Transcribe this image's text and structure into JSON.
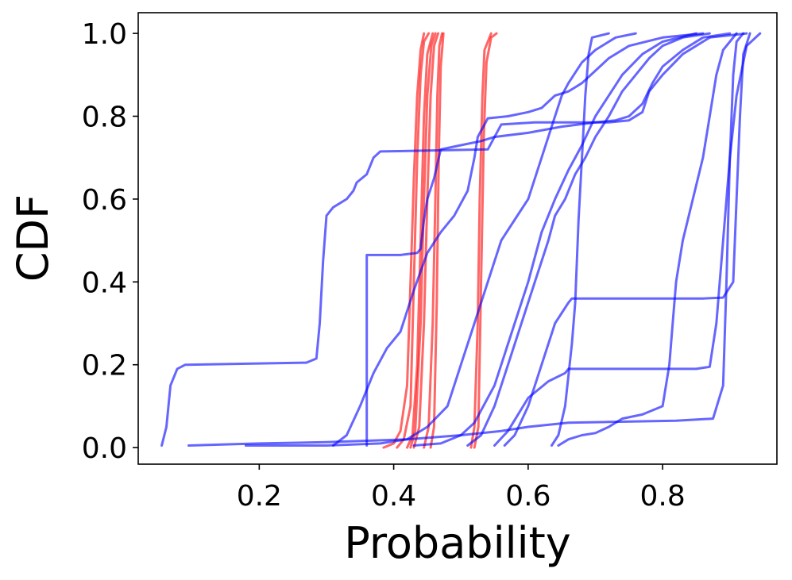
{
  "chart_data": {
    "type": "line",
    "title": "",
    "xlabel": "Probability",
    "ylabel": "CDF",
    "xlim": [
      0.02,
      0.97
    ],
    "ylim": [
      -0.04,
      1.05
    ],
    "xticks": [
      0.2,
      0.4,
      0.6,
      0.8
    ],
    "xtick_labels": [
      "0.2",
      "0.4",
      "0.6",
      "0.8"
    ],
    "yticks": [
      0.0,
      0.2,
      0.4,
      0.6,
      0.8,
      1.0
    ],
    "ytick_labels": [
      "0.0",
      "0.2",
      "0.4",
      "0.6",
      "0.8",
      "1.0"
    ],
    "grid": false,
    "legend": "none",
    "colors": {
      "blue": "#0000ff",
      "red": "#ff0000"
    },
    "series_opacity": 0.6,
    "series": [
      {
        "color": "red",
        "points": [
          [
            0.385,
            0.0
          ],
          [
            0.4,
            0.01
          ],
          [
            0.41,
            0.04
          ],
          [
            0.42,
            0.15
          ],
          [
            0.425,
            0.4
          ],
          [
            0.43,
            0.65
          ],
          [
            0.435,
            0.85
          ],
          [
            0.44,
            0.96
          ],
          [
            0.445,
            1.0
          ]
        ]
      },
      {
        "color": "red",
        "points": [
          [
            0.405,
            0.0
          ],
          [
            0.415,
            0.02
          ],
          [
            0.425,
            0.1
          ],
          [
            0.43,
            0.4
          ],
          [
            0.435,
            0.7
          ],
          [
            0.44,
            0.9
          ],
          [
            0.445,
            0.98
          ],
          [
            0.452,
            1.0
          ]
        ]
      },
      {
        "color": "red",
        "points": [
          [
            0.42,
            0.0
          ],
          [
            0.428,
            0.03
          ],
          [
            0.435,
            0.2
          ],
          [
            0.44,
            0.5
          ],
          [
            0.445,
            0.8
          ],
          [
            0.45,
            0.95
          ],
          [
            0.458,
            1.0
          ]
        ]
      },
      {
        "color": "red",
        "points": [
          [
            0.425,
            0.0
          ],
          [
            0.432,
            0.04
          ],
          [
            0.44,
            0.3
          ],
          [
            0.445,
            0.6
          ],
          [
            0.45,
            0.85
          ],
          [
            0.456,
            0.97
          ],
          [
            0.462,
            1.0
          ]
        ]
      },
      {
        "color": "red",
        "points": [
          [
            0.43,
            0.0
          ],
          [
            0.438,
            0.05
          ],
          [
            0.445,
            0.3
          ],
          [
            0.45,
            0.6
          ],
          [
            0.455,
            0.85
          ],
          [
            0.46,
            0.97
          ],
          [
            0.466,
            1.0
          ]
        ]
      },
      {
        "color": "red",
        "points": [
          [
            0.445,
            0.0
          ],
          [
            0.452,
            0.05
          ],
          [
            0.458,
            0.3
          ],
          [
            0.462,
            0.6
          ],
          [
            0.465,
            0.85
          ],
          [
            0.468,
            0.97
          ],
          [
            0.472,
            1.0
          ]
        ]
      },
      {
        "color": "red",
        "points": [
          [
            0.455,
            0.0
          ],
          [
            0.46,
            0.05
          ],
          [
            0.464,
            0.35
          ],
          [
            0.467,
            0.7
          ],
          [
            0.47,
            0.92
          ],
          [
            0.474,
            1.0
          ]
        ]
      },
      {
        "color": "red",
        "points": [
          [
            0.515,
            0.0
          ],
          [
            0.52,
            0.05
          ],
          [
            0.525,
            0.3
          ],
          [
            0.528,
            0.6
          ],
          [
            0.532,
            0.85
          ],
          [
            0.535,
            0.96
          ],
          [
            0.545,
            1.0
          ]
        ]
      },
      {
        "color": "red",
        "points": [
          [
            0.52,
            0.0
          ],
          [
            0.526,
            0.05
          ],
          [
            0.53,
            0.4
          ],
          [
            0.534,
            0.75
          ],
          [
            0.538,
            0.93
          ],
          [
            0.545,
            0.99
          ],
          [
            0.553,
            1.0
          ]
        ]
      },
      {
        "color": "blue",
        "points": [
          [
            0.055,
            0.005
          ],
          [
            0.062,
            0.05
          ],
          [
            0.068,
            0.15
          ],
          [
            0.078,
            0.19
          ],
          [
            0.09,
            0.2
          ],
          [
            0.27,
            0.205
          ],
          [
            0.285,
            0.215
          ],
          [
            0.29,
            0.3
          ],
          [
            0.295,
            0.45
          ],
          [
            0.3,
            0.56
          ],
          [
            0.31,
            0.58
          ],
          [
            0.33,
            0.6
          ],
          [
            0.34,
            0.62
          ],
          [
            0.345,
            0.64
          ],
          [
            0.36,
            0.66
          ],
          [
            0.37,
            0.7
          ],
          [
            0.38,
            0.715
          ],
          [
            0.54,
            0.72
          ],
          [
            0.56,
            0.78
          ],
          [
            0.61,
            0.785
          ],
          [
            0.65,
            0.785
          ],
          [
            0.72,
            0.785
          ],
          [
            0.75,
            0.79
          ],
          [
            0.77,
            0.81
          ],
          [
            0.78,
            0.86
          ],
          [
            0.8,
            0.9
          ],
          [
            0.83,
            0.95
          ],
          [
            0.87,
            0.99
          ],
          [
            0.925,
            1.0
          ]
        ]
      },
      {
        "color": "blue",
        "points": [
          [
            0.095,
            0.005
          ],
          [
            0.2,
            0.01
          ],
          [
            0.3,
            0.013
          ],
          [
            0.42,
            0.02
          ],
          [
            0.5,
            0.03
          ],
          [
            0.56,
            0.04
          ],
          [
            0.6,
            0.05
          ],
          [
            0.66,
            0.06
          ],
          [
            0.72,
            0.062
          ],
          [
            0.82,
            0.065
          ],
          [
            0.875,
            0.07
          ],
          [
            0.89,
            0.15
          ],
          [
            0.895,
            0.4
          ],
          [
            0.9,
            0.7
          ],
          [
            0.905,
            0.9
          ],
          [
            0.91,
            0.98
          ],
          [
            0.92,
            1.0
          ]
        ]
      },
      {
        "color": "blue",
        "points": [
          [
            0.36,
            0.005
          ],
          [
            0.36,
            0.465
          ],
          [
            0.41,
            0.465
          ],
          [
            0.435,
            0.47
          ],
          [
            0.44,
            0.48
          ],
          [
            0.445,
            0.55
          ],
          [
            0.45,
            0.6
          ],
          [
            0.46,
            0.65
          ],
          [
            0.47,
            0.72
          ],
          [
            0.5,
            0.73
          ],
          [
            0.53,
            0.74
          ],
          [
            0.55,
            0.75
          ],
          [
            0.6,
            0.76
          ],
          [
            0.65,
            0.775
          ],
          [
            0.7,
            0.785
          ],
          [
            0.73,
            0.79
          ],
          [
            0.75,
            0.8
          ],
          [
            0.77,
            0.83
          ],
          [
            0.785,
            0.88
          ],
          [
            0.8,
            0.92
          ],
          [
            0.83,
            0.96
          ],
          [
            0.86,
            0.99
          ],
          [
            0.9,
            1.0
          ]
        ]
      },
      {
        "color": "blue",
        "points": [
          [
            0.31,
            0.005
          ],
          [
            0.33,
            0.03
          ],
          [
            0.35,
            0.1
          ],
          [
            0.37,
            0.18
          ],
          [
            0.39,
            0.24
          ],
          [
            0.41,
            0.28
          ],
          [
            0.43,
            0.38
          ],
          [
            0.45,
            0.47
          ],
          [
            0.47,
            0.52
          ],
          [
            0.49,
            0.56
          ],
          [
            0.51,
            0.62
          ],
          [
            0.52,
            0.7
          ],
          [
            0.525,
            0.75
          ],
          [
            0.54,
            0.795
          ],
          [
            0.57,
            0.8
          ],
          [
            0.6,
            0.81
          ],
          [
            0.62,
            0.82
          ],
          [
            0.64,
            0.85
          ],
          [
            0.66,
            0.86
          ],
          [
            0.67,
            0.87
          ],
          [
            0.68,
            0.88
          ],
          [
            0.7,
            0.91
          ],
          [
            0.72,
            0.94
          ],
          [
            0.75,
            0.97
          ],
          [
            0.8,
            0.99
          ],
          [
            0.86,
            1.0
          ]
        ]
      },
      {
        "color": "blue",
        "points": [
          [
            0.18,
            0.005
          ],
          [
            0.3,
            0.005
          ],
          [
            0.38,
            0.01
          ],
          [
            0.42,
            0.02
          ],
          [
            0.45,
            0.05
          ],
          [
            0.48,
            0.1
          ],
          [
            0.5,
            0.2
          ],
          [
            0.52,
            0.3
          ],
          [
            0.54,
            0.4
          ],
          [
            0.56,
            0.5
          ],
          [
            0.58,
            0.55
          ],
          [
            0.6,
            0.6
          ],
          [
            0.62,
            0.7
          ],
          [
            0.64,
            0.8
          ],
          [
            0.65,
            0.85
          ],
          [
            0.66,
            0.88
          ],
          [
            0.68,
            0.93
          ],
          [
            0.7,
            0.96
          ],
          [
            0.73,
            0.99
          ],
          [
            0.76,
            1.0
          ]
        ]
      },
      {
        "color": "blue",
        "points": [
          [
            0.43,
            0.005
          ],
          [
            0.47,
            0.01
          ],
          [
            0.5,
            0.03
          ],
          [
            0.52,
            0.06
          ],
          [
            0.55,
            0.15
          ],
          [
            0.58,
            0.3
          ],
          [
            0.6,
            0.4
          ],
          [
            0.62,
            0.52
          ],
          [
            0.64,
            0.6
          ],
          [
            0.66,
            0.67
          ],
          [
            0.68,
            0.73
          ],
          [
            0.7,
            0.8
          ],
          [
            0.72,
            0.85
          ],
          [
            0.74,
            0.9
          ],
          [
            0.77,
            0.95
          ],
          [
            0.8,
            0.98
          ],
          [
            0.85,
            1.0
          ]
        ]
      },
      {
        "color": "blue",
        "points": [
          [
            0.51,
            0.005
          ],
          [
            0.53,
            0.03
          ],
          [
            0.55,
            0.1
          ],
          [
            0.57,
            0.2
          ],
          [
            0.59,
            0.3
          ],
          [
            0.61,
            0.4
          ],
          [
            0.63,
            0.5
          ],
          [
            0.64,
            0.56
          ],
          [
            0.655,
            0.6
          ],
          [
            0.67,
            0.66
          ],
          [
            0.685,
            0.7
          ],
          [
            0.7,
            0.75
          ],
          [
            0.72,
            0.8
          ],
          [
            0.74,
            0.86
          ],
          [
            0.76,
            0.9
          ],
          [
            0.78,
            0.94
          ],
          [
            0.8,
            0.97
          ],
          [
            0.83,
            0.99
          ],
          [
            0.87,
            1.0
          ]
        ]
      },
      {
        "color": "blue",
        "points": [
          [
            0.565,
            0.005
          ],
          [
            0.58,
            0.03
          ],
          [
            0.6,
            0.1
          ],
          [
            0.62,
            0.2
          ],
          [
            0.64,
            0.3
          ],
          [
            0.66,
            0.35
          ],
          [
            0.665,
            0.36
          ],
          [
            0.7,
            0.36
          ],
          [
            0.75,
            0.36
          ],
          [
            0.8,
            0.36
          ],
          [
            0.86,
            0.36
          ],
          [
            0.89,
            0.362
          ],
          [
            0.905,
            0.4
          ],
          [
            0.91,
            0.6
          ],
          [
            0.915,
            0.8
          ],
          [
            0.92,
            0.95
          ],
          [
            0.93,
            1.0
          ]
        ]
      },
      {
        "color": "blue",
        "points": [
          [
            0.55,
            0.005
          ],
          [
            0.57,
            0.04
          ],
          [
            0.6,
            0.12
          ],
          [
            0.63,
            0.16
          ],
          [
            0.655,
            0.18
          ],
          [
            0.66,
            0.19
          ],
          [
            0.7,
            0.19
          ],
          [
            0.75,
            0.19
          ],
          [
            0.8,
            0.19
          ],
          [
            0.85,
            0.19
          ],
          [
            0.87,
            0.195
          ],
          [
            0.88,
            0.3
          ],
          [
            0.89,
            0.5
          ],
          [
            0.9,
            0.7
          ],
          [
            0.91,
            0.85
          ],
          [
            0.925,
            0.97
          ],
          [
            0.945,
            1.0
          ]
        ]
      },
      {
        "color": "blue",
        "points": [
          [
            0.635,
            0.005
          ],
          [
            0.645,
            0.03
          ],
          [
            0.655,
            0.1
          ],
          [
            0.665,
            0.25
          ],
          [
            0.67,
            0.35
          ],
          [
            0.675,
            0.55
          ],
          [
            0.68,
            0.7
          ],
          [
            0.685,
            0.85
          ],
          [
            0.69,
            0.95
          ],
          [
            0.695,
            0.99
          ],
          [
            0.72,
            1.0
          ]
        ]
      },
      {
        "color": "blue",
        "points": [
          [
            0.645,
            0.005
          ],
          [
            0.66,
            0.02
          ],
          [
            0.68,
            0.03
          ],
          [
            0.7,
            0.035
          ],
          [
            0.72,
            0.05
          ],
          [
            0.74,
            0.07
          ],
          [
            0.77,
            0.08
          ],
          [
            0.8,
            0.1
          ],
          [
            0.81,
            0.2
          ],
          [
            0.815,
            0.3
          ],
          [
            0.82,
            0.4
          ],
          [
            0.83,
            0.5
          ],
          [
            0.845,
            0.6
          ],
          [
            0.86,
            0.7
          ],
          [
            0.87,
            0.8
          ],
          [
            0.88,
            0.9
          ],
          [
            0.89,
            0.96
          ],
          [
            0.91,
            1.0
          ]
        ]
      }
    ]
  }
}
